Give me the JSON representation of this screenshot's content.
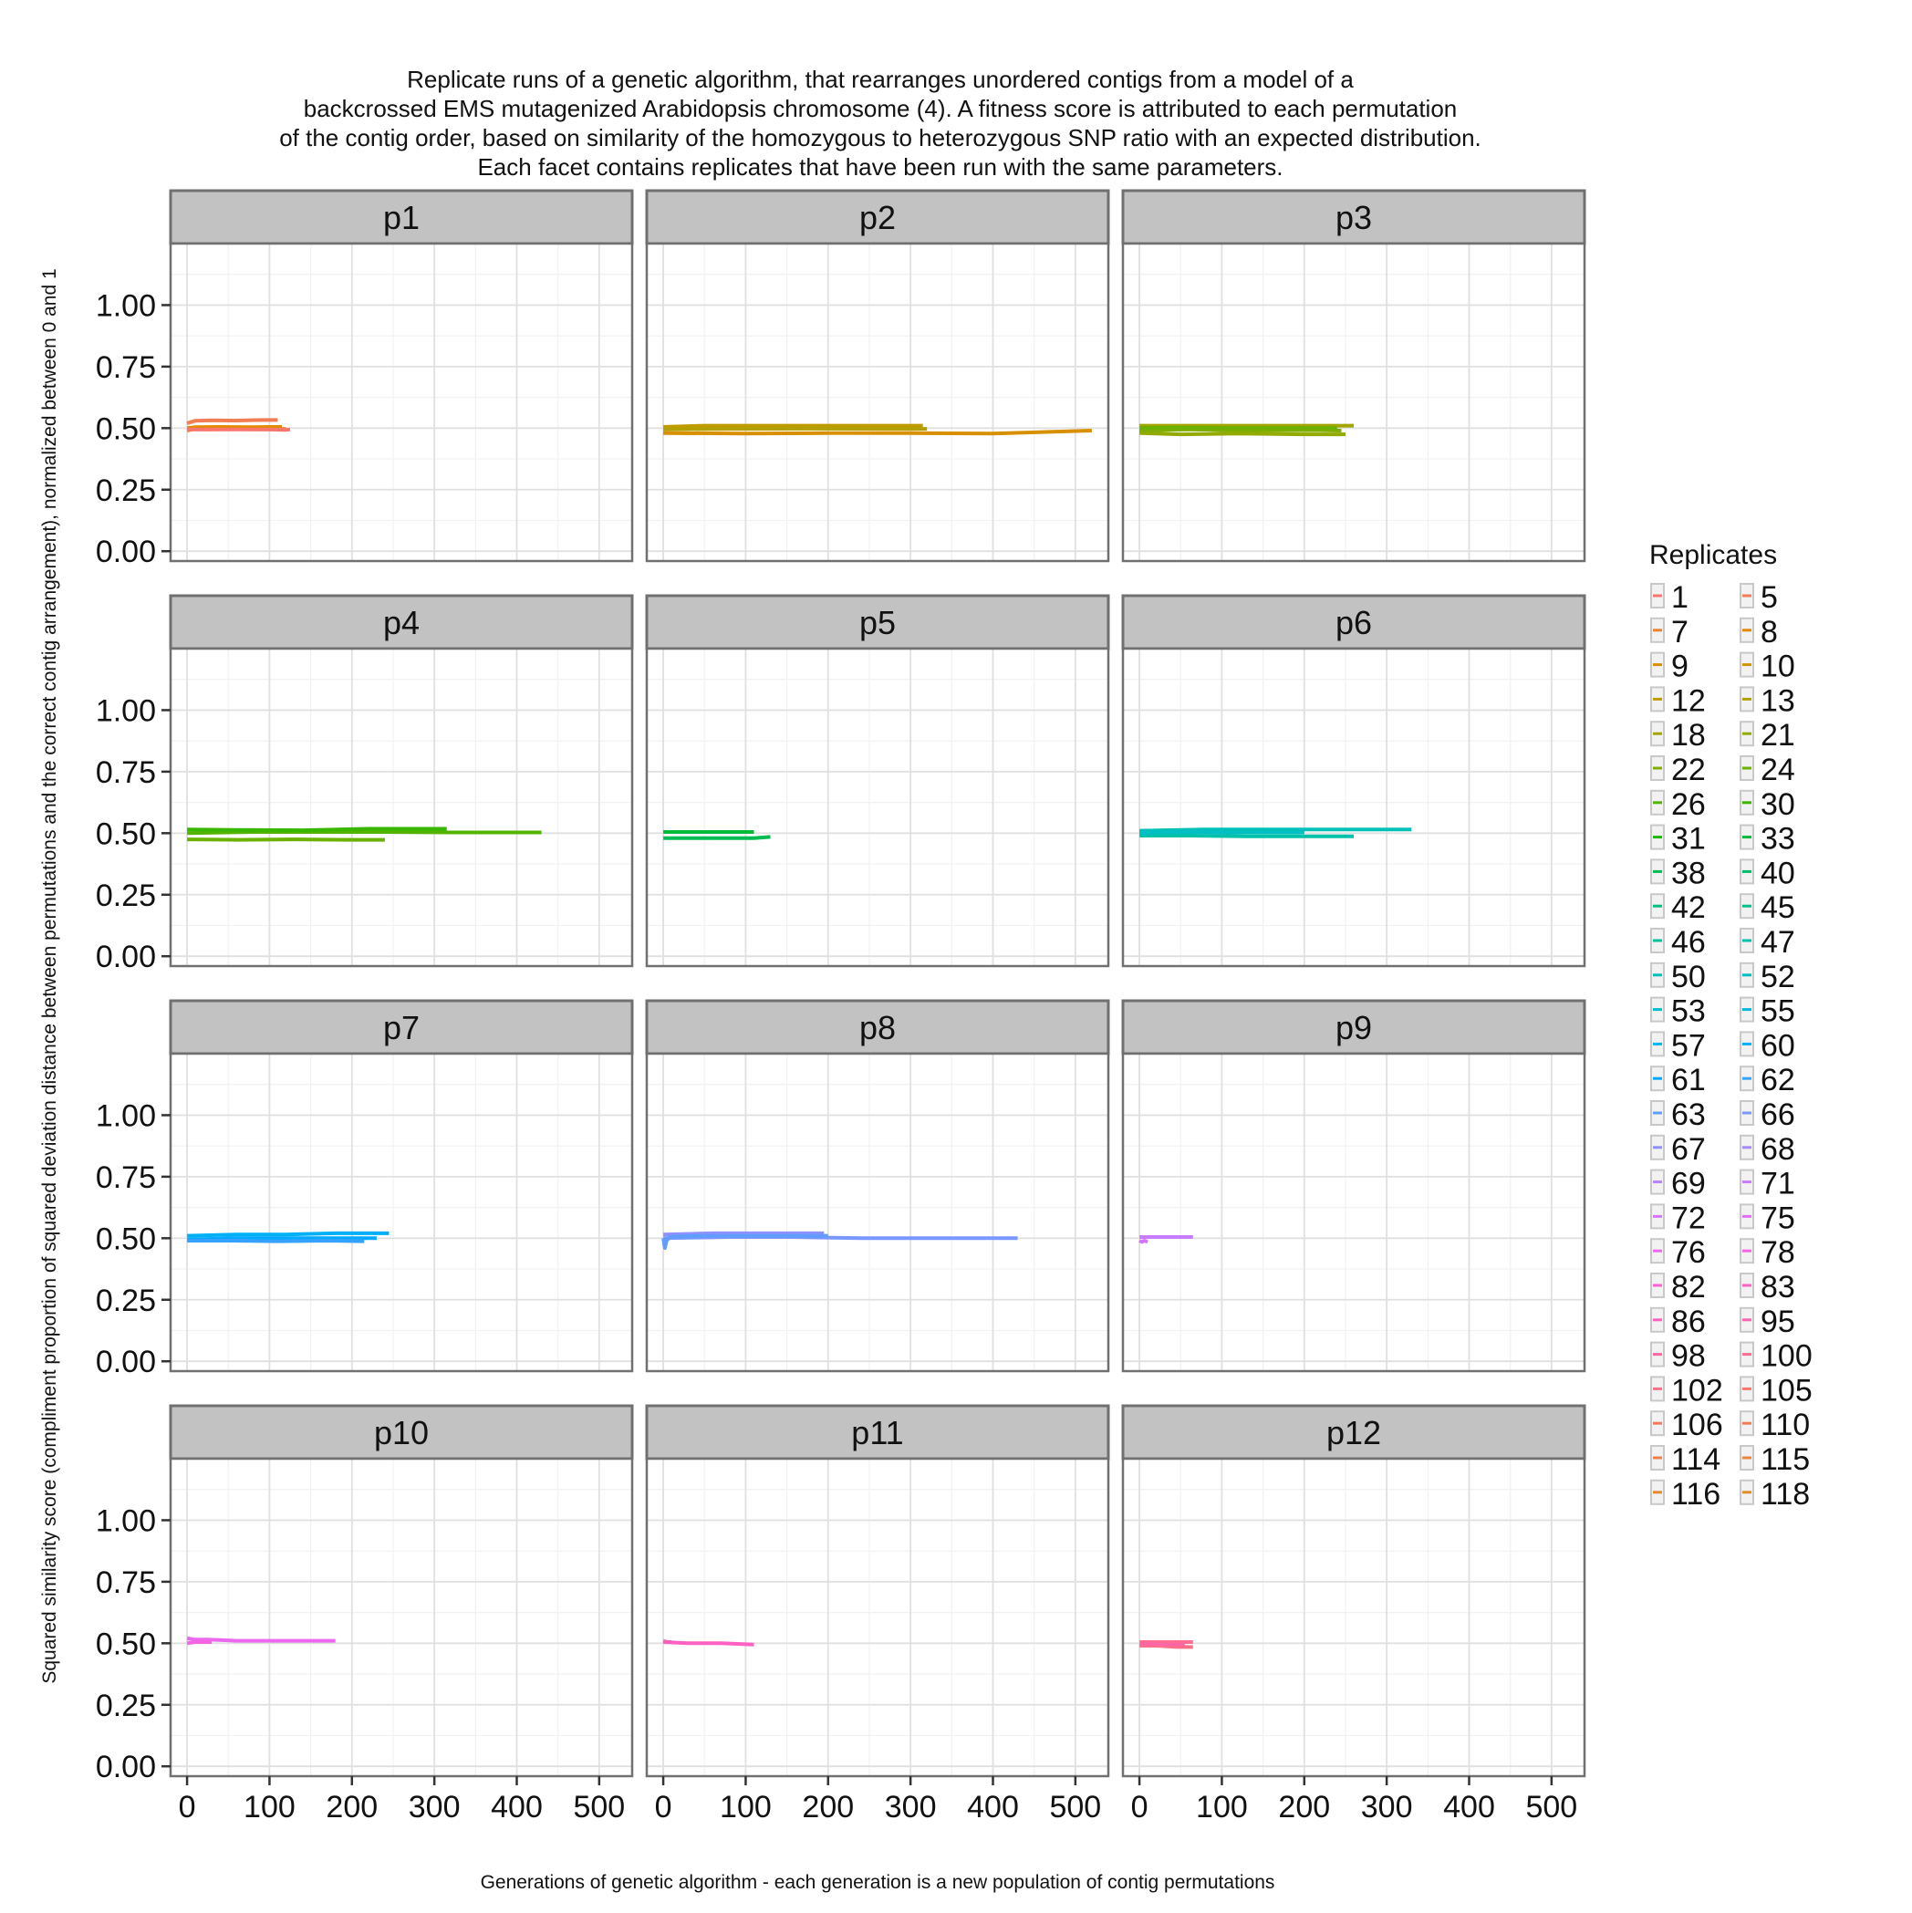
{
  "chart_data": {
    "type": "line",
    "title_lines": [
      "Replicate runs of a genetic algorithm, that rearranges unordered contigs from a model of a",
      "backcrossed EMS mutagenized Arabidopsis chromosome (4). A fitness score is attributed to each permutation",
      "of the contig order, based on similarity of the homozygous to heterozygous SNP ratio with an expected distribution.",
      "Each facet contains replicates that have been run with the same parameters."
    ],
    "xlabel": "Generations of genetic algorithm - each generation is a new population of contig permutations",
    "ylabel": "Squared similarity score (compliment proportion of squared deviation distance between permutations and the correct contig arrangement), normalized between 0 and 1",
    "xlim": [
      -20,
      540
    ],
    "ylim": [
      -0.04,
      1.25
    ],
    "x_ticks": [
      0,
      100,
      200,
      300,
      400,
      500
    ],
    "x_tick_labels": [
      "0",
      "100",
      "200",
      "300",
      "400",
      "500"
    ],
    "y_ticks": [
      0,
      0.25,
      0.5,
      0.75,
      1
    ],
    "y_tick_labels": [
      "0.00",
      "0.25",
      "0.50",
      "0.75",
      "1.00"
    ],
    "grid": true,
    "legend": {
      "title": "Replicates",
      "position": "right",
      "entries": [
        "1",
        "5",
        "7",
        "8",
        "9",
        "10",
        "12",
        "13",
        "18",
        "21",
        "22",
        "24",
        "26",
        "30",
        "31",
        "33",
        "38",
        "40",
        "42",
        "45",
        "46",
        "47",
        "50",
        "52",
        "53",
        "55",
        "57",
        "60",
        "61",
        "62",
        "63",
        "66",
        "67",
        "68",
        "69",
        "71",
        "72",
        "75",
        "76",
        "78",
        "82",
        "83",
        "86",
        "95",
        "98",
        "100",
        "102",
        "105",
        "106",
        "110",
        "114",
        "115",
        "116",
        "118"
      ],
      "colors": [
        "#F8766D",
        "#F27D52",
        "#EA8331",
        "#E38900",
        "#D89000",
        "#CD9600",
        "#C09B00",
        "#B3A000",
        "#A3A500",
        "#93AA00",
        "#81AD00",
        "#6BB100",
        "#53B400",
        "#39B600",
        "#1AB900",
        "#00BA38",
        "#00BC51",
        "#00BE67",
        "#00BF7D",
        "#00C08B",
        "#00C19A",
        "#00C1AA",
        "#00C0B8",
        "#00BFC4",
        "#00BDD0",
        "#00BADE",
        "#00B6EB",
        "#00B0F6",
        "#00A9FF",
        "#35A2FF",
        "#619CFF",
        "#7997FF",
        "#8F91FF",
        "#A58AFF",
        "#B983FF",
        "#C77CFF",
        "#D575FE",
        "#E26EF7",
        "#EC69EF",
        "#F564E3",
        "#FC61D5",
        "#FF61C3",
        "#FF62BC",
        "#FF64B0",
        "#FF67A4",
        "#FF6C91",
        "#FD6F86",
        "#F8766D",
        "#F47A5F",
        "#F07E54",
        "#EC8249",
        "#E8863E",
        "#E48A33",
        "#E08E28"
      ]
    },
    "facets": [
      {
        "label": "p1",
        "series": [
          {
            "color": "#F27D52",
            "x": [
              0,
              10,
              30,
              60,
              90,
              110
            ],
            "y": [
              0.52,
              0.53,
              0.532,
              0.531,
              0.533,
              0.533
            ]
          },
          {
            "color": "#EA8331",
            "x": [
              0,
              10,
              40,
              80,
              110,
              120
            ],
            "y": [
              0.49,
              0.497,
              0.496,
              0.497,
              0.496,
              0.497
            ]
          },
          {
            "color": "#E38900",
            "x": [
              0,
              10,
              40,
              80,
              100,
              115
            ],
            "y": [
              0.5,
              0.504,
              0.505,
              0.504,
              0.505,
              0.505
            ]
          },
          {
            "color": "#F8766D",
            "x": [
              0,
              20,
              60,
              100,
              120,
              125
            ],
            "y": [
              0.495,
              0.494,
              0.495,
              0.494,
              0.493,
              0.495
            ]
          }
        ]
      },
      {
        "label": "p2",
        "series": [
          {
            "color": "#C09B00",
            "x": [
              0,
              50,
              150,
              250,
              300,
              315
            ],
            "y": [
              0.505,
              0.51,
              0.51,
              0.51,
              0.51,
              0.51
            ]
          },
          {
            "color": "#D89000",
            "x": [
              0,
              100,
              200,
              300,
              400,
              520
            ],
            "y": [
              0.48,
              0.478,
              0.48,
              0.48,
              0.478,
              0.49
            ]
          },
          {
            "color": "#B3A000",
            "x": [
              0,
              80,
              180,
              280,
              320
            ],
            "y": [
              0.495,
              0.497,
              0.498,
              0.497,
              0.497
            ]
          }
        ]
      },
      {
        "label": "p3",
        "series": [
          {
            "color": "#A3A500",
            "x": [
              0,
              50,
              120,
              200,
              260
            ],
            "y": [
              0.51,
              0.51,
              0.51,
              0.51,
              0.51
            ]
          },
          {
            "color": "#93AA00",
            "x": [
              0,
              50,
              120,
              200,
              250
            ],
            "y": [
              0.48,
              0.475,
              0.478,
              0.475,
              0.475
            ]
          },
          {
            "color": "#81AD00",
            "x": [
              0,
              60,
              130,
              210,
              245
            ],
            "y": [
              0.49,
              0.495,
              0.49,
              0.492,
              0.49
            ]
          },
          {
            "color": "#6BB100",
            "x": [
              0,
              40,
              100,
              170,
              240
            ],
            "y": [
              0.5,
              0.502,
              0.5,
              0.5,
              0.5
            ]
          }
        ]
      },
      {
        "label": "p4",
        "series": [
          {
            "color": "#53B400",
            "x": [
              0,
              80,
              160,
              240,
              320,
              430
            ],
            "y": [
              0.5,
              0.505,
              0.505,
              0.505,
              0.503,
              0.503
            ]
          },
          {
            "color": "#39B600",
            "x": [
              0,
              60,
              140,
              220,
              290,
              315
            ],
            "y": [
              0.515,
              0.513,
              0.512,
              0.518,
              0.518,
              0.518
            ]
          },
          {
            "color": "#6BB100",
            "x": [
              0,
              60,
              130,
              200,
              240
            ],
            "y": [
              0.475,
              0.473,
              0.475,
              0.473,
              0.473
            ]
          }
        ]
      },
      {
        "label": "p5",
        "series": [
          {
            "color": "#00BA38",
            "x": [
              0,
              30,
              70,
              100,
              110
            ],
            "y": [
              0.505,
              0.505,
              0.505,
              0.505,
              0.505
            ]
          },
          {
            "color": "#00BC51",
            "x": [
              0,
              40,
              80,
              110,
              130
            ],
            "y": [
              0.48,
              0.48,
              0.48,
              0.48,
              0.485
            ]
          }
        ]
      },
      {
        "label": "p6",
        "series": [
          {
            "color": "#00C0B8",
            "x": [
              0,
              80,
              160,
              240,
              300,
              330
            ],
            "y": [
              0.51,
              0.515,
              0.515,
              0.515,
              0.515,
              0.515
            ]
          },
          {
            "color": "#00C1AA",
            "x": [
              0,
              60,
              130,
              200,
              260
            ],
            "y": [
              0.49,
              0.49,
              0.487,
              0.487,
              0.487
            ]
          },
          {
            "color": "#00BFC4",
            "x": [
              0,
              50,
              100,
              150,
              200
            ],
            "y": [
              0.5,
              0.505,
              0.503,
              0.503,
              0.503
            ]
          }
        ]
      },
      {
        "label": "p7",
        "series": [
          {
            "color": "#00B0F6",
            "x": [
              0,
              60,
              120,
              180,
              245
            ],
            "y": [
              0.51,
              0.515,
              0.515,
              0.52,
              0.52
            ]
          },
          {
            "color": "#00A9FF",
            "x": [
              0,
              60,
              120,
              180,
              230
            ],
            "y": [
              0.495,
              0.5,
              0.5,
              0.5,
              0.5
            ]
          },
          {
            "color": "#35A2FF",
            "x": [
              0,
              50,
              110,
              170,
              215
            ],
            "y": [
              0.49,
              0.49,
              0.488,
              0.49,
              0.488
            ]
          }
        ]
      },
      {
        "label": "p8",
        "series": [
          {
            "color": "#8F91FF",
            "x": [
              0,
              60,
              120,
              180,
              195
            ],
            "y": [
              0.515,
              0.52,
              0.52,
              0.52,
              0.52
            ]
          },
          {
            "color": "#7997FF",
            "x": [
              0,
              80,
              160,
              240,
              330,
              430
            ],
            "y": [
              0.5,
              0.505,
              0.505,
              0.5,
              0.5,
              0.5
            ]
          },
          {
            "color": "#619CFF",
            "x": [
              0,
              2,
              4,
              8,
              20,
              60,
              120,
              200
            ],
            "y": [
              0.5,
              0.46,
              0.49,
              0.505,
              0.508,
              0.51,
              0.51,
              0.51
            ]
          }
        ]
      },
      {
        "label": "p9",
        "series": [
          {
            "color": "#C77CFF",
            "x": [
              0,
              20,
              40,
              65
            ],
            "y": [
              0.505,
              0.505,
              0.505,
              0.505
            ]
          },
          {
            "color": "#D575FE",
            "x": [
              0,
              3,
              6,
              10
            ],
            "y": [
              0.49,
              0.485,
              0.49,
              0.485
            ]
          }
        ]
      },
      {
        "label": "p10",
        "series": [
          {
            "color": "#EC69EF",
            "x": [
              0,
              10,
              25,
              60,
              120,
              180
            ],
            "y": [
              0.52,
              0.515,
              0.515,
              0.51,
              0.51,
              0.51
            ]
          },
          {
            "color": "#F564E3",
            "x": [
              0,
              10,
              20,
              30
            ],
            "y": [
              0.5,
              0.505,
              0.505,
              0.505
            ]
          }
        ]
      },
      {
        "label": "p11",
        "series": [
          {
            "color": "#FF61C3",
            "x": [
              0,
              30,
              70,
              110
            ],
            "y": [
              0.505,
              0.5,
              0.5,
              0.495
            ]
          },
          {
            "color": "#FF62BC",
            "x": [
              0,
              5,
              10
            ],
            "y": [
              0.51,
              0.505,
              0.505
            ]
          }
        ]
      },
      {
        "label": "p12",
        "series": [
          {
            "color": "#FF6C91",
            "x": [
              0,
              20,
              45,
              65
            ],
            "y": [
              0.505,
              0.505,
              0.505,
              0.505
            ]
          },
          {
            "color": "#FD6F86",
            "x": [
              0,
              20,
              45,
              65
            ],
            "y": [
              0.49,
              0.49,
              0.485,
              0.485
            ]
          },
          {
            "color": "#FF67A4",
            "x": [
              0,
              15,
              30,
              55
            ],
            "y": [
              0.497,
              0.497,
              0.495,
              0.495
            ]
          }
        ]
      }
    ]
  }
}
